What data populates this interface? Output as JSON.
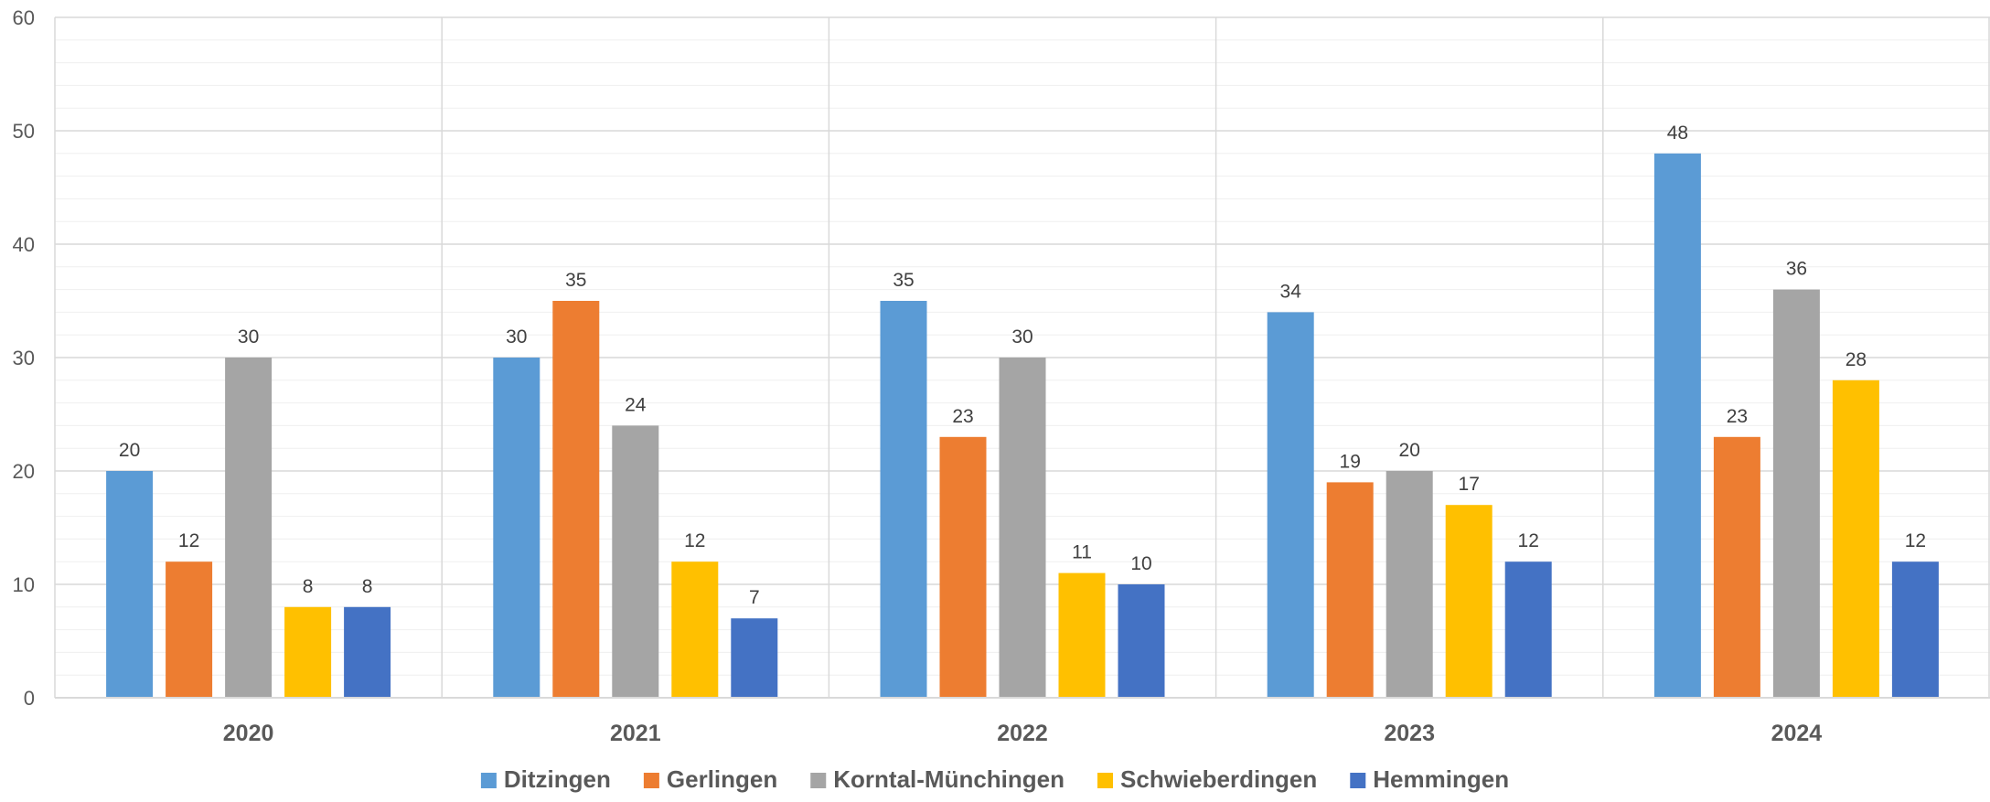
{
  "chart_data": {
    "type": "bar",
    "title": "",
    "xlabel": "",
    "ylabel": "",
    "categories": [
      "2020",
      "2021",
      "2022",
      "2023",
      "2024"
    ],
    "ylim": [
      0,
      60
    ],
    "yticks": [
      "0",
      "10",
      "20",
      "30",
      "40",
      "50",
      "60"
    ],
    "grid": true,
    "legend_position": "bottom",
    "series": [
      {
        "name": "Ditzingen",
        "color": "#5B9BD5",
        "values": [
          20,
          30,
          35,
          34,
          48
        ]
      },
      {
        "name": "Gerlingen",
        "color": "#ED7D31",
        "values": [
          12,
          35,
          23,
          19,
          23
        ]
      },
      {
        "name": "Korntal-Münchingen",
        "color": "#A5A5A5",
        "values": [
          30,
          24,
          30,
          20,
          36
        ]
      },
      {
        "name": "Schwieberdingen",
        "color": "#FFC000",
        "values": [
          8,
          12,
          11,
          17,
          28
        ]
      },
      {
        "name": "Hemmingen",
        "color": "#4472C4",
        "values": [
          8,
          7,
          10,
          12,
          12
        ]
      }
    ]
  }
}
